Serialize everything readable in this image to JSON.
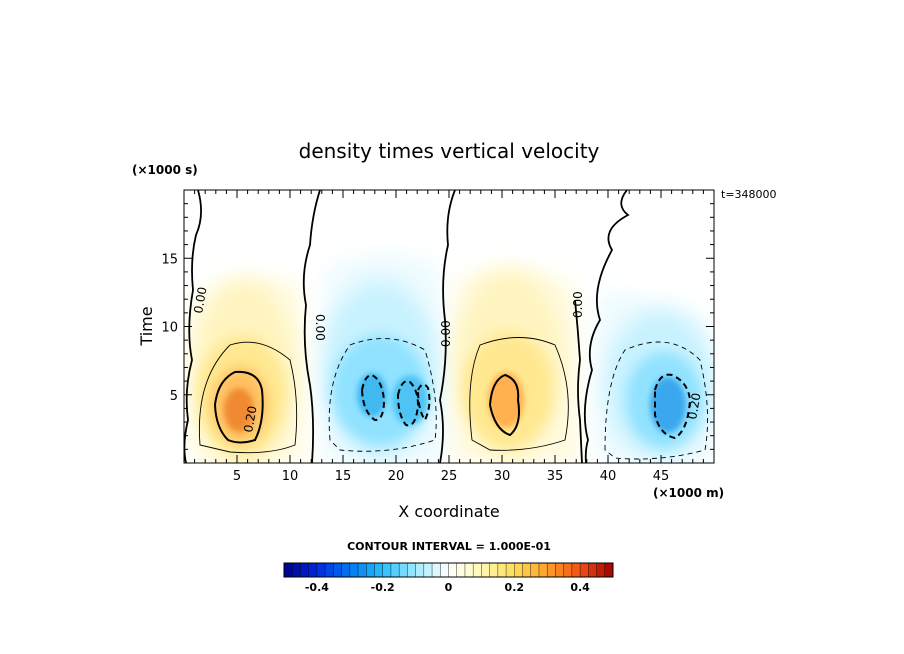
{
  "chart_data": {
    "type": "heatmap",
    "title": "density times vertical velocity",
    "xlabel": "X coordinate",
    "ylabel": "Time",
    "x_unit": "(×1000 m)",
    "y_unit": "(×1000 s)",
    "xlim": [
      0,
      50
    ],
    "ylim": [
      0,
      20
    ],
    "xticks": [
      5,
      10,
      15,
      20,
      25,
      30,
      35,
      40,
      45
    ],
    "yticks": [
      5,
      10,
      15
    ],
    "annotation_right": "t=348000",
    "contour_interval_text": "CONTOUR INTERVAL = 1.000E-01",
    "contour_labels": [
      "0.00",
      "0.00",
      "0.00",
      "0.00",
      "0.20",
      "0.20"
    ],
    "colorbar": {
      "range": [
        -0.5,
        0.5
      ],
      "ticks": [
        "-0.4",
        "-0.2",
        "0",
        "0.2",
        "0.4"
      ],
      "tick_values": [
        -0.4,
        -0.2,
        0,
        0.2,
        0.4
      ],
      "n_bins": 40
    },
    "cells": [
      {
        "x": 5.5,
        "y": 4.5,
        "value": 0.32
      },
      {
        "x": 19,
        "y": 5,
        "value": -0.28
      },
      {
        "x": 30,
        "y": 5,
        "value": 0.26
      },
      {
        "x": 46,
        "y": 4.5,
        "value": -0.33
      }
    ]
  }
}
